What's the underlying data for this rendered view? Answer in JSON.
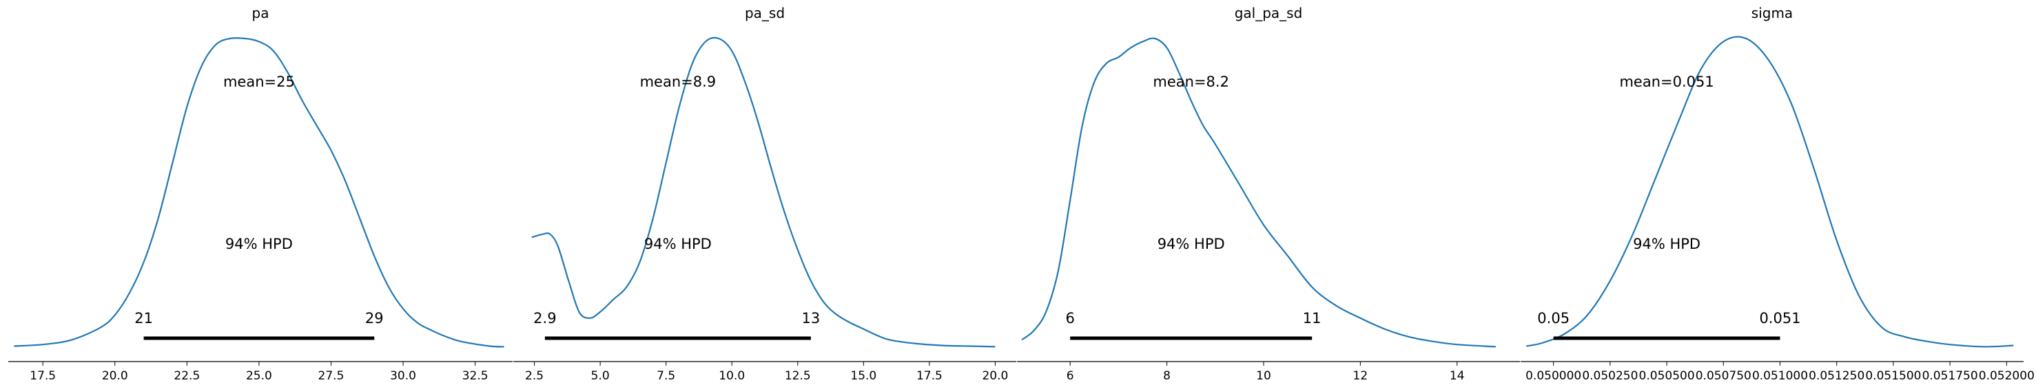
{
  "chart_data": [
    {
      "type": "density",
      "title": "pa",
      "mean_label": "mean=25",
      "hpd_label": "94% HPD",
      "hpd_interval": [
        21,
        29
      ],
      "hpd_low_label": "21",
      "hpd_high_label": "29",
      "xlim": [
        16.3,
        33.8
      ],
      "ticks": [
        17.5,
        20.0,
        22.5,
        25.0,
        27.5,
        30.0,
        32.5
      ],
      "tick_labels": [
        "17.5",
        "20.0",
        "22.5",
        "25.0",
        "27.5",
        "30.0",
        "32.5"
      ],
      "x": [
        16.5,
        17.5,
        18.5,
        19.5,
        20.0,
        20.5,
        21.0,
        21.5,
        22.0,
        22.5,
        23.0,
        23.5,
        24.0,
        24.5,
        25.0,
        25.5,
        26.0,
        26.5,
        27.0,
        27.5,
        28.0,
        28.5,
        29.0,
        29.5,
        30.0,
        30.5,
        31.0,
        31.5,
        32.0,
        33.0,
        33.5
      ],
      "density": [
        0.01,
        0.015,
        0.03,
        0.07,
        0.11,
        0.18,
        0.28,
        0.42,
        0.6,
        0.78,
        0.91,
        0.98,
        1.0,
        1.0,
        0.99,
        0.96,
        0.89,
        0.8,
        0.72,
        0.64,
        0.54,
        0.42,
        0.3,
        0.2,
        0.13,
        0.085,
        0.06,
        0.04,
        0.025,
        0.01,
        0.008
      ]
    },
    {
      "type": "density",
      "title": "pa_sd",
      "mean_label": "mean=8.9",
      "hpd_label": "94% HPD",
      "hpd_interval": [
        2.9,
        13
      ],
      "hpd_low_label": "2.9",
      "hpd_high_label": "13",
      "xlim": [
        1.7,
        20.8
      ],
      "ticks": [
        2.5,
        5.0,
        7.5,
        10.0,
        12.5,
        15.0,
        17.5,
        20.0
      ],
      "tick_labels": [
        "2.5",
        "5.0",
        "7.5",
        "10.0",
        "12.5",
        "15.0",
        "17.5",
        "20.0"
      ],
      "x": [
        2.4,
        2.8,
        3.1,
        3.4,
        3.8,
        4.2,
        4.6,
        5.0,
        5.5,
        6.0,
        6.5,
        7.0,
        7.5,
        8.0,
        8.5,
        9.0,
        9.5,
        10.0,
        10.5,
        11.0,
        11.5,
        12.0,
        12.5,
        13.0,
        13.5,
        14.0,
        14.5,
        15.0,
        15.5,
        16.0,
        17.0,
        18.0,
        19.0,
        20.0
      ],
      "density": [
        0.36,
        0.37,
        0.37,
        0.33,
        0.22,
        0.12,
        0.1,
        0.12,
        0.16,
        0.2,
        0.28,
        0.42,
        0.6,
        0.78,
        0.92,
        0.99,
        1.0,
        0.96,
        0.86,
        0.73,
        0.58,
        0.44,
        0.32,
        0.22,
        0.15,
        0.11,
        0.085,
        0.065,
        0.045,
        0.03,
        0.018,
        0.012,
        0.01,
        0.008
      ]
    },
    {
      "type": "density",
      "title": "gal_pa_sd",
      "mean_label": "mean=8.2",
      "hpd_label": "94% HPD",
      "hpd_interval": [
        6,
        11
      ],
      "hpd_low_label": "6",
      "hpd_high_label": "11",
      "xlim": [
        4.9,
        15.3
      ],
      "ticks": [
        6,
        8,
        10,
        12,
        14
      ],
      "tick_labels": [
        "6",
        "8",
        "10",
        "12",
        "14"
      ],
      "x": [
        5.0,
        5.25,
        5.5,
        5.75,
        6.0,
        6.25,
        6.5,
        6.75,
        7.0,
        7.25,
        7.5,
        7.75,
        8.0,
        8.25,
        8.5,
        8.75,
        9.0,
        9.5,
        10.0,
        10.5,
        11.0,
        11.5,
        12.0,
        12.5,
        13.0,
        13.5,
        14.0,
        14.8
      ],
      "density": [
        0.03,
        0.06,
        0.12,
        0.25,
        0.48,
        0.72,
        0.86,
        0.92,
        0.94,
        0.97,
        0.99,
        1.0,
        0.97,
        0.89,
        0.8,
        0.72,
        0.66,
        0.53,
        0.4,
        0.3,
        0.2,
        0.14,
        0.1,
        0.065,
        0.04,
        0.025,
        0.015,
        0.008
      ]
    },
    {
      "type": "density",
      "title": "sigma",
      "mean_label": "mean=0.051",
      "hpd_label": "94% HPD",
      "hpd_interval": [
        0.05,
        0.051
      ],
      "hpd_low_label": "0.05",
      "hpd_high_label": "0.051",
      "xlim": [
        0.049855,
        0.052075
      ],
      "ticks": [
        0.05,
        0.05025,
        0.0505,
        0.05075,
        0.051,
        0.05125,
        0.0515,
        0.05175,
        0.052
      ],
      "tick_labels": [
        "0.050000",
        "0.050250",
        "0.050500",
        "0.050750",
        "0.051000",
        "0.051250",
        "0.051500",
        "0.051750",
        "0.052000"
      ],
      "x": [
        0.04988,
        0.04995,
        0.05005,
        0.05015,
        0.05025,
        0.05035,
        0.05045,
        0.05055,
        0.05065,
        0.05075,
        0.05085,
        0.05095,
        0.05105,
        0.05115,
        0.05125,
        0.05135,
        0.05145,
        0.05155,
        0.05165,
        0.05175,
        0.0519,
        0.05203
      ],
      "density": [
        0.01,
        0.02,
        0.05,
        0.11,
        0.22,
        0.37,
        0.55,
        0.73,
        0.9,
        0.99,
        1.0,
        0.93,
        0.79,
        0.58,
        0.35,
        0.17,
        0.07,
        0.04,
        0.025,
        0.015,
        0.008,
        0.012
      ]
    }
  ]
}
